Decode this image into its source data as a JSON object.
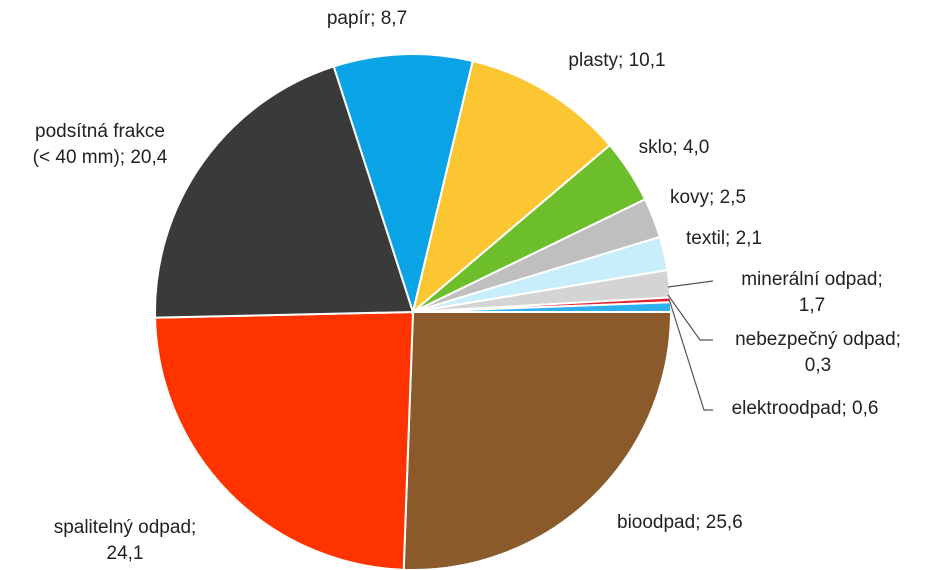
{
  "chart_data": {
    "type": "pie",
    "title": "",
    "unit": "",
    "start_angle_deg": 90,
    "direction": "clockwise",
    "slices": [
      {
        "id": "bioodpad",
        "label": "bioodpad; 25,6",
        "lines": [
          "bioodpad; 25,6"
        ],
        "value": 25.6,
        "color": "#8B5A2B"
      },
      {
        "id": "spalitelny",
        "label": "spalitelný odpad; 24,1",
        "lines": [
          "spalitelný odpad;",
          "24,1"
        ],
        "value": 24.1,
        "color": "#FF3300"
      },
      {
        "id": "podsitna",
        "label": "podsítná frakce (< 40 mm); 20,4",
        "lines": [
          "podsítná frakce",
          "(< 40 mm); 20,4"
        ],
        "value": 20.4,
        "color": "#3A3A3A"
      },
      {
        "id": "papir",
        "label": "papír; 8,7",
        "lines": [
          "papír; 8,7"
        ],
        "value": 8.7,
        "color": "#0AA3E6"
      },
      {
        "id": "plasty",
        "label": "plasty; 10,1",
        "lines": [
          "plasty; 10,1"
        ],
        "value": 10.1,
        "color": "#FCC633"
      },
      {
        "id": "sklo",
        "label": "sklo; 4,0",
        "lines": [
          "sklo; 4,0"
        ],
        "value": 4.0,
        "color": "#6DBE2B"
      },
      {
        "id": "kovy",
        "label": "kovy; 2,5",
        "lines": [
          "kovy; 2,5"
        ],
        "value": 2.5,
        "color": "#BFBFBF"
      },
      {
        "id": "textil",
        "label": "textil; 2,1",
        "lines": [
          "textil; 2,1"
        ],
        "value": 2.1,
        "color": "#C9EEFB"
      },
      {
        "id": "mineralni",
        "label": "minerální odpad; 1,7",
        "lines": [
          "minerální odpad;",
          "1,7"
        ],
        "value": 1.7,
        "color": "#D4D4D4"
      },
      {
        "id": "nebezpecny",
        "label": "nebezpečný odpad; 0,3",
        "lines": [
          "nebezpečný odpad;",
          "0,3"
        ],
        "value": 0.3,
        "color": "#E8212A"
      },
      {
        "id": "elektroodpad",
        "label": "elektroodpad; 0,6",
        "lines": [
          "elektroodpad; 0,6"
        ],
        "value": 0.6,
        "color": "#2FB0EE"
      }
    ]
  }
}
